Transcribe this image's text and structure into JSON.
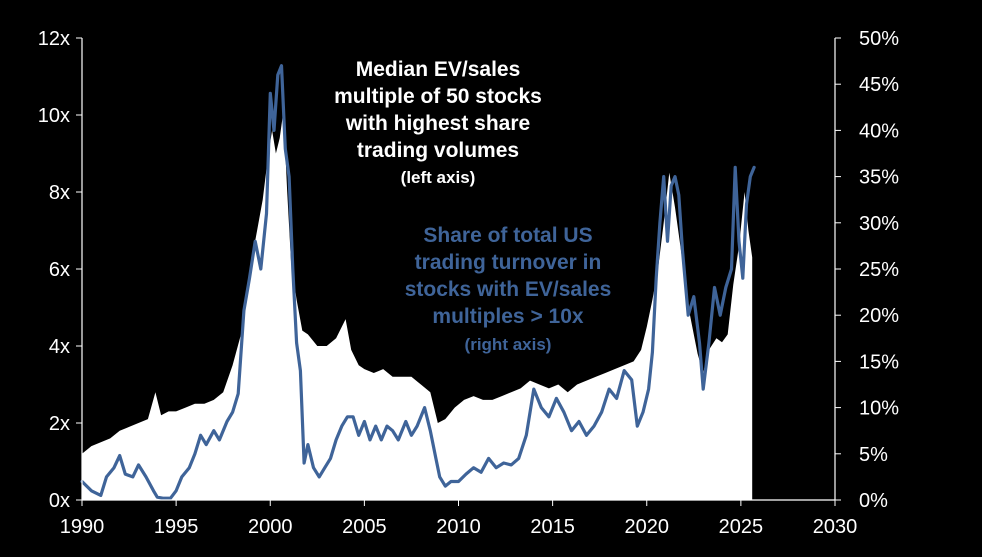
{
  "colors": {
    "background": "#000000",
    "area_fill": "#ffffff",
    "line": "#3f6499",
    "axis": "#ffffff"
  },
  "annotations": {
    "white_lines": [
      "Median EV/sales",
      "multiple of 50 stocks",
      "with highest share",
      "trading volumes"
    ],
    "white_sub": "(left axis)",
    "blue_lines": [
      "Share of total US",
      "trading turnover in",
      "stocks with EV/sales",
      "multiples > 10x"
    ],
    "blue_sub": "(right axis)"
  },
  "chart_data": {
    "type": "area",
    "title": "",
    "xlabel": "",
    "ylabel": "",
    "xlim": [
      1990,
      2030
    ],
    "ylim": [
      0,
      12
    ],
    "y2lim": [
      0,
      50
    ],
    "x_ticks": [
      "1990",
      "1995",
      "2000",
      "2005",
      "2010",
      "2015",
      "2020",
      "2025",
      "2030"
    ],
    "y_ticks": [
      "0x",
      "2x",
      "4x",
      "6x",
      "8x",
      "10x",
      "12x"
    ],
    "y2_ticks": [
      "0%",
      "5%",
      "10%",
      "15%",
      "20%",
      "25%",
      "30%",
      "35%",
      "40%",
      "45%",
      "50%"
    ],
    "grid": false,
    "legend": "none",
    "series": [
      {
        "axis": "left",
        "style": "area",
        "points": [
          [
            1990.0,
            1.2
          ],
          [
            1990.5,
            1.4
          ],
          [
            1991.0,
            1.5
          ],
          [
            1991.5,
            1.6
          ],
          [
            1992.0,
            1.8
          ],
          [
            1992.5,
            1.9
          ],
          [
            1993.0,
            2.0
          ],
          [
            1993.5,
            2.1
          ],
          [
            1993.9,
            2.8
          ],
          [
            1994.2,
            2.2
          ],
          [
            1994.6,
            2.3
          ],
          [
            1995.0,
            2.3
          ],
          [
            1995.5,
            2.4
          ],
          [
            1996.0,
            2.5
          ],
          [
            1996.5,
            2.5
          ],
          [
            1997.0,
            2.6
          ],
          [
            1997.5,
            2.8
          ],
          [
            1998.0,
            3.5
          ],
          [
            1998.5,
            4.4
          ],
          [
            1998.8,
            5.5
          ],
          [
            1999.0,
            6.2
          ],
          [
            1999.3,
            7.0
          ],
          [
            1999.6,
            7.8
          ],
          [
            1999.9,
            9.0
          ],
          [
            2000.1,
            9.6
          ],
          [
            2000.3,
            9.0
          ],
          [
            2000.5,
            9.4
          ],
          [
            2000.7,
            10.1
          ],
          [
            2000.9,
            8.0
          ],
          [
            2001.1,
            6.2
          ],
          [
            2001.4,
            5.2
          ],
          [
            2001.7,
            4.4
          ],
          [
            2002.0,
            4.3
          ],
          [
            2002.5,
            4.0
          ],
          [
            2003.0,
            4.0
          ],
          [
            2003.5,
            4.2
          ],
          [
            2004.0,
            4.7
          ],
          [
            2004.3,
            3.9
          ],
          [
            2004.7,
            3.5
          ],
          [
            2005.0,
            3.4
          ],
          [
            2005.5,
            3.3
          ],
          [
            2006.0,
            3.4
          ],
          [
            2006.5,
            3.2
          ],
          [
            2007.0,
            3.2
          ],
          [
            2007.5,
            3.2
          ],
          [
            2008.0,
            3.0
          ],
          [
            2008.5,
            2.8
          ],
          [
            2008.9,
            2.0
          ],
          [
            2009.3,
            2.1
          ],
          [
            2009.8,
            2.4
          ],
          [
            2010.3,
            2.6
          ],
          [
            2010.8,
            2.7
          ],
          [
            2011.3,
            2.6
          ],
          [
            2011.8,
            2.6
          ],
          [
            2012.3,
            2.7
          ],
          [
            2012.8,
            2.8
          ],
          [
            2013.3,
            2.9
          ],
          [
            2013.8,
            3.1
          ],
          [
            2014.3,
            3.0
          ],
          [
            2014.8,
            2.9
          ],
          [
            2015.3,
            3.0
          ],
          [
            2015.8,
            2.8
          ],
          [
            2016.3,
            3.0
          ],
          [
            2016.8,
            3.1
          ],
          [
            2017.3,
            3.2
          ],
          [
            2017.8,
            3.3
          ],
          [
            2018.3,
            3.4
          ],
          [
            2018.8,
            3.5
          ],
          [
            2019.3,
            3.6
          ],
          [
            2019.7,
            3.9
          ],
          [
            2020.0,
            4.5
          ],
          [
            2020.3,
            5.2
          ],
          [
            2020.6,
            6.0
          ],
          [
            2020.9,
            7.2
          ],
          [
            2021.2,
            8.5
          ],
          [
            2021.5,
            7.6
          ],
          [
            2021.9,
            6.2
          ],
          [
            2022.3,
            4.8
          ],
          [
            2022.7,
            3.8
          ],
          [
            2023.0,
            3.3
          ],
          [
            2023.3,
            3.9
          ],
          [
            2023.7,
            4.2
          ],
          [
            2024.0,
            4.1
          ],
          [
            2024.3,
            4.3
          ],
          [
            2024.6,
            5.6
          ],
          [
            2024.9,
            6.6
          ],
          [
            2025.2,
            8.0
          ],
          [
            2025.4,
            7.0
          ],
          [
            2025.6,
            6.3
          ]
        ]
      },
      {
        "axis": "right",
        "style": "line",
        "points": [
          [
            1990.0,
            2.0
          ],
          [
            1990.5,
            1.0
          ],
          [
            1991.0,
            0.5
          ],
          [
            1991.3,
            2.5
          ],
          [
            1991.7,
            3.5
          ],
          [
            1992.0,
            4.8
          ],
          [
            1992.3,
            2.8
          ],
          [
            1992.7,
            2.5
          ],
          [
            1993.0,
            3.8
          ],
          [
            1993.4,
            2.5
          ],
          [
            1993.8,
            1.0
          ],
          [
            1994.0,
            0.3
          ],
          [
            1994.3,
            0.2
          ],
          [
            1994.7,
            0.2
          ],
          [
            1995.0,
            1.0
          ],
          [
            1995.3,
            2.5
          ],
          [
            1995.7,
            3.5
          ],
          [
            1996.0,
            5.0
          ],
          [
            1996.3,
            7.0
          ],
          [
            1996.6,
            6.0
          ],
          [
            1997.0,
            7.5
          ],
          [
            1997.3,
            6.5
          ],
          [
            1997.7,
            8.5
          ],
          [
            1998.0,
            9.5
          ],
          [
            1998.3,
            11.5
          ],
          [
            1998.6,
            20.5
          ],
          [
            1998.9,
            24.0
          ],
          [
            1999.2,
            28.0
          ],
          [
            1999.5,
            25.0
          ],
          [
            1999.8,
            31.0
          ],
          [
            2000.0,
            44.0
          ],
          [
            2000.2,
            40.0
          ],
          [
            2000.4,
            46.0
          ],
          [
            2000.6,
            47.0
          ],
          [
            2000.8,
            38.0
          ],
          [
            2001.0,
            35.0
          ],
          [
            2001.2,
            25.0
          ],
          [
            2001.4,
            17.0
          ],
          [
            2001.6,
            14.0
          ],
          [
            2001.8,
            4.0
          ],
          [
            2002.0,
            6.0
          ],
          [
            2002.3,
            3.5
          ],
          [
            2002.6,
            2.5
          ],
          [
            2002.9,
            3.5
          ],
          [
            2003.2,
            4.5
          ],
          [
            2003.5,
            6.5
          ],
          [
            2003.8,
            8.0
          ],
          [
            2004.1,
            9.0
          ],
          [
            2004.4,
            9.0
          ],
          [
            2004.7,
            7.0
          ],
          [
            2005.0,
            8.5
          ],
          [
            2005.3,
            6.5
          ],
          [
            2005.6,
            8.0
          ],
          [
            2005.9,
            6.5
          ],
          [
            2006.2,
            8.0
          ],
          [
            2006.5,
            7.5
          ],
          [
            2006.8,
            6.5
          ],
          [
            2007.2,
            8.5
          ],
          [
            2007.5,
            7.0
          ],
          [
            2007.8,
            8.0
          ],
          [
            2008.2,
            10.0
          ],
          [
            2008.5,
            7.5
          ],
          [
            2008.8,
            4.5
          ],
          [
            2009.0,
            2.5
          ],
          [
            2009.3,
            1.5
          ],
          [
            2009.6,
            2.0
          ],
          [
            2010.0,
            2.0
          ],
          [
            2010.4,
            2.8
          ],
          [
            2010.8,
            3.5
          ],
          [
            2011.2,
            3.0
          ],
          [
            2011.6,
            4.5
          ],
          [
            2012.0,
            3.5
          ],
          [
            2012.4,
            4.0
          ],
          [
            2012.8,
            3.8
          ],
          [
            2013.2,
            4.5
          ],
          [
            2013.6,
            7.0
          ],
          [
            2014.0,
            12.0
          ],
          [
            2014.4,
            10.0
          ],
          [
            2014.8,
            9.0
          ],
          [
            2015.2,
            11.0
          ],
          [
            2015.6,
            9.5
          ],
          [
            2016.0,
            7.5
          ],
          [
            2016.4,
            8.5
          ],
          [
            2016.8,
            7.0
          ],
          [
            2017.2,
            8.0
          ],
          [
            2017.6,
            9.5
          ],
          [
            2018.0,
            12.0
          ],
          [
            2018.4,
            11.0
          ],
          [
            2018.8,
            14.0
          ],
          [
            2019.2,
            13.0
          ],
          [
            2019.5,
            8.0
          ],
          [
            2019.8,
            9.5
          ],
          [
            2020.1,
            12.0
          ],
          [
            2020.3,
            16.0
          ],
          [
            2020.5,
            24.0
          ],
          [
            2020.7,
            30.0
          ],
          [
            2020.9,
            35.0
          ],
          [
            2021.1,
            28.0
          ],
          [
            2021.3,
            34.0
          ],
          [
            2021.5,
            35.0
          ],
          [
            2021.7,
            33.0
          ],
          [
            2021.9,
            27.0
          ],
          [
            2022.2,
            20.0
          ],
          [
            2022.5,
            22.0
          ],
          [
            2022.8,
            17.0
          ],
          [
            2023.0,
            12.0
          ],
          [
            2023.3,
            17.0
          ],
          [
            2023.6,
            23.0
          ],
          [
            2023.9,
            20.0
          ],
          [
            2024.2,
            23.0
          ],
          [
            2024.5,
            25.0
          ],
          [
            2024.7,
            36.0
          ],
          [
            2024.9,
            28.0
          ],
          [
            2025.1,
            24.0
          ],
          [
            2025.3,
            32.0
          ],
          [
            2025.5,
            35.0
          ],
          [
            2025.7,
            36.0
          ]
        ]
      }
    ]
  }
}
